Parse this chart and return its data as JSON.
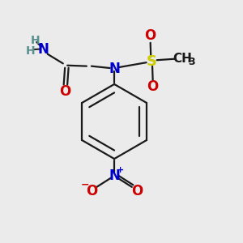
{
  "bg_color": "#ebebeb",
  "bond_color": "#1a1a1a",
  "bond_width": 1.6,
  "colors": {
    "N": "#0000cc",
    "O": "#cc0000",
    "S": "#cccc00",
    "C": "#1a1a1a",
    "H": "#5a9090"
  },
  "fs": 11,
  "fss": 8
}
